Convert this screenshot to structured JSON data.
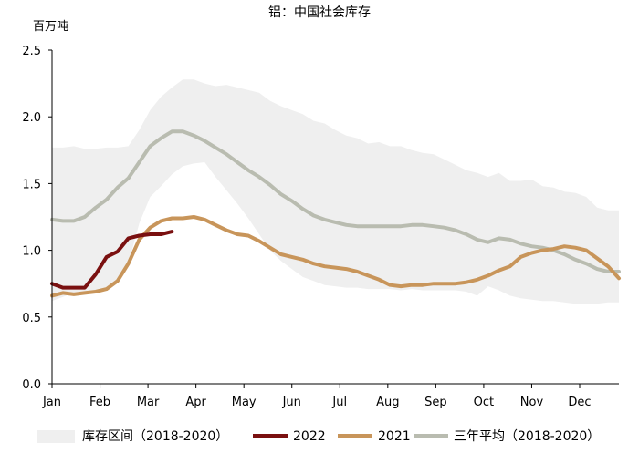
{
  "chart_data": {
    "type": "line",
    "title": "铝：中国社会库存",
    "ylabel": "百万吨",
    "xlabel": "",
    "ylim": [
      0,
      2.5
    ],
    "yticks": [
      "0.0",
      "0.5",
      "1.0",
      "1.5",
      "2.0",
      "2.5"
    ],
    "xlim": [
      0,
      52
    ],
    "xtick_labels": [
      "Jan",
      "Feb",
      "Mar",
      "Apr",
      "May",
      "Jun",
      "Jul",
      "Aug",
      "Sep",
      "Oct",
      "Nov",
      "Dec"
    ],
    "xtick_weeks": [
      0,
      4.4,
      8.8,
      13.2,
      17.6,
      22,
      26.4,
      30.8,
      35.2,
      39.6,
      44,
      48.4
    ],
    "band": {
      "name": "库存区间（2018-2020）",
      "color": "#efefef",
      "upper": [
        [
          0,
          1.77
        ],
        [
          1,
          1.77
        ],
        [
          2,
          1.78
        ],
        [
          3,
          1.76
        ],
        [
          4,
          1.76
        ],
        [
          5,
          1.77
        ],
        [
          6,
          1.77
        ],
        [
          7,
          1.78
        ],
        [
          8,
          1.9
        ],
        [
          9,
          2.05
        ],
        [
          10,
          2.15
        ],
        [
          11,
          2.22
        ],
        [
          12,
          2.28
        ],
        [
          13,
          2.28
        ],
        [
          14,
          2.25
        ],
        [
          15,
          2.23
        ],
        [
          16,
          2.24
        ],
        [
          17,
          2.22
        ],
        [
          18,
          2.2
        ],
        [
          19,
          2.18
        ],
        [
          20,
          2.12
        ],
        [
          21,
          2.08
        ],
        [
          22,
          2.05
        ],
        [
          23,
          2.02
        ],
        [
          24,
          1.97
        ],
        [
          25,
          1.95
        ],
        [
          26,
          1.9
        ],
        [
          27,
          1.86
        ],
        [
          28,
          1.84
        ],
        [
          29,
          1.8
        ],
        [
          30,
          1.81
        ],
        [
          31,
          1.78
        ],
        [
          32,
          1.78
        ],
        [
          33,
          1.75
        ],
        [
          34,
          1.73
        ],
        [
          35,
          1.72
        ],
        [
          36,
          1.68
        ],
        [
          37,
          1.64
        ],
        [
          38,
          1.6
        ],
        [
          39,
          1.58
        ],
        [
          40,
          1.55
        ],
        [
          41,
          1.58
        ],
        [
          42,
          1.52
        ],
        [
          43,
          1.52
        ],
        [
          44,
          1.53
        ],
        [
          45,
          1.48
        ],
        [
          46,
          1.47
        ],
        [
          47,
          1.44
        ],
        [
          48,
          1.43
        ],
        [
          49,
          1.4
        ],
        [
          50,
          1.32
        ],
        [
          51,
          1.3
        ],
        [
          52,
          1.3
        ]
      ],
      "lower": [
        [
          0,
          0.62
        ],
        [
          1,
          0.65
        ],
        [
          2,
          0.68
        ],
        [
          3,
          0.68
        ],
        [
          4,
          0.7
        ],
        [
          5,
          0.72
        ],
        [
          6,
          0.78
        ],
        [
          7,
          0.9
        ],
        [
          8,
          1.2
        ],
        [
          9,
          1.4
        ],
        [
          10,
          1.48
        ],
        [
          11,
          1.57
        ],
        [
          12,
          1.63
        ],
        [
          13,
          1.65
        ],
        [
          14,
          1.66
        ],
        [
          15,
          1.55
        ],
        [
          16,
          1.45
        ],
        [
          17,
          1.35
        ],
        [
          18,
          1.24
        ],
        [
          19,
          1.12
        ],
        [
          20,
          1.0
        ],
        [
          21,
          0.92
        ],
        [
          22,
          0.86
        ],
        [
          23,
          0.8
        ],
        [
          24,
          0.77
        ],
        [
          25,
          0.74
        ],
        [
          26,
          0.73
        ],
        [
          27,
          0.72
        ],
        [
          28,
          0.72
        ],
        [
          29,
          0.71
        ],
        [
          30,
          0.71
        ],
        [
          31,
          0.71
        ],
        [
          32,
          0.7
        ],
        [
          33,
          0.71
        ],
        [
          34,
          0.7
        ],
        [
          35,
          0.7
        ],
        [
          36,
          0.7
        ],
        [
          37,
          0.7
        ],
        [
          38,
          0.69
        ],
        [
          39,
          0.66
        ],
        [
          40,
          0.73
        ],
        [
          41,
          0.7
        ],
        [
          42,
          0.66
        ],
        [
          43,
          0.64
        ],
        [
          44,
          0.63
        ],
        [
          45,
          0.62
        ],
        [
          46,
          0.62
        ],
        [
          47,
          0.61
        ],
        [
          48,
          0.6
        ],
        [
          49,
          0.6
        ],
        [
          50,
          0.6
        ],
        [
          51,
          0.61
        ],
        [
          52,
          0.61
        ]
      ]
    },
    "series": [
      {
        "name": "2022",
        "color": "#7a1010",
        "x": [
          0,
          1,
          2,
          3,
          4,
          5,
          6,
          7,
          8,
          9,
          10,
          11
        ],
        "values": [
          0.75,
          0.72,
          0.72,
          0.72,
          0.82,
          0.95,
          0.99,
          1.09,
          1.11,
          1.12,
          1.12,
          1.14
        ]
      },
      {
        "name": "2021",
        "color": "#c8955a",
        "x": [
          0,
          1,
          2,
          3,
          4,
          5,
          6,
          7,
          8,
          9,
          10,
          11,
          12,
          13,
          14,
          15,
          16,
          17,
          18,
          19,
          20,
          21,
          22,
          23,
          24,
          25,
          26,
          27,
          28,
          29,
          30,
          31,
          32,
          33,
          34,
          35,
          36,
          37,
          38,
          39,
          40,
          41,
          42,
          43,
          44,
          45,
          46,
          47,
          48,
          49,
          50,
          51,
          52
        ],
        "values": [
          0.66,
          0.68,
          0.67,
          0.68,
          0.69,
          0.71,
          0.77,
          0.9,
          1.08,
          1.17,
          1.22,
          1.24,
          1.24,
          1.25,
          1.23,
          1.19,
          1.15,
          1.12,
          1.11,
          1.07,
          1.02,
          0.97,
          0.95,
          0.93,
          0.9,
          0.88,
          0.87,
          0.86,
          0.84,
          0.81,
          0.78,
          0.74,
          0.73,
          0.74,
          0.74,
          0.75,
          0.75,
          0.75,
          0.76,
          0.78,
          0.81,
          0.85,
          0.88,
          0.95,
          0.98,
          1.0,
          1.01,
          1.03,
          1.02,
          1.0,
          0.94,
          0.88,
          0.79
        ]
      },
      {
        "name": "三年平均（2018-2020）",
        "color": "#b9bcb0",
        "x": [
          0,
          1,
          2,
          3,
          4,
          5,
          6,
          7,
          8,
          9,
          10,
          11,
          12,
          13,
          14,
          15,
          16,
          17,
          18,
          19,
          20,
          21,
          22,
          23,
          24,
          25,
          26,
          27,
          28,
          29,
          30,
          31,
          32,
          33,
          34,
          35,
          36,
          37,
          38,
          39,
          40,
          41,
          42,
          43,
          44,
          45,
          46,
          47,
          48,
          49,
          50,
          51,
          52
        ],
        "values": [
          1.23,
          1.22,
          1.22,
          1.25,
          1.32,
          1.38,
          1.47,
          1.54,
          1.66,
          1.78,
          1.84,
          1.89,
          1.89,
          1.86,
          1.82,
          1.77,
          1.72,
          1.66,
          1.6,
          1.55,
          1.49,
          1.42,
          1.37,
          1.31,
          1.26,
          1.23,
          1.21,
          1.19,
          1.18,
          1.18,
          1.18,
          1.18,
          1.18,
          1.19,
          1.19,
          1.18,
          1.17,
          1.15,
          1.12,
          1.08,
          1.06,
          1.09,
          1.08,
          1.05,
          1.03,
          1.02,
          1.0,
          0.97,
          0.93,
          0.9,
          0.86,
          0.84,
          0.84
        ]
      }
    ],
    "legend": [
      "库存区间（2018-2020）",
      "2022",
      "2021",
      "三年平均（2018-2020）"
    ]
  }
}
